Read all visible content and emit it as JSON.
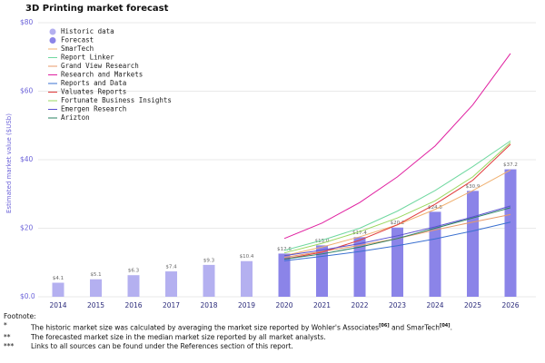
{
  "chart_data": {
    "type": "bar",
    "title": "3D Printing market forecast",
    "y_label": "Estimated market value ($USb)",
    "categories": [
      "2014",
      "2015",
      "2016",
      "2017",
      "2018",
      "2019",
      "2020",
      "2021",
      "2022",
      "2023",
      "2024",
      "2025",
      "2026"
    ],
    "ylim": [
      0,
      80
    ],
    "yticks": [
      {
        "value": 0,
        "label": "$0.0"
      },
      {
        "value": 20,
        "label": "$20"
      },
      {
        "value": 40,
        "label": "$40"
      },
      {
        "value": 60,
        "label": "$60"
      },
      {
        "value": 80,
        "label": "$80"
      }
    ],
    "grid": true,
    "legend": "upper left",
    "series": [
      {
        "name": "Historic data",
        "color": "#b4b0f0",
        "values": [
          4.1,
          5.1,
          6.3,
          7.4,
          9.3,
          10.4,
          null,
          null,
          null,
          null,
          null,
          null,
          null
        ],
        "value_labels": [
          "$4.1",
          "$5.1",
          "$6.3",
          "$7.4",
          "$9.3",
          "$10.4",
          null,
          null,
          null,
          null,
          null,
          null,
          null
        ]
      },
      {
        "name": "Forecast",
        "color": "#8b84e8",
        "values": [
          null,
          null,
          null,
          null,
          null,
          null,
          12.6,
          15.0,
          17.4,
          20.2,
          24.8,
          30.9,
          37.2
        ],
        "value_labels": [
          null,
          null,
          null,
          null,
          null,
          null,
          "$12.6",
          "$15.0",
          "$17.4",
          "$20.2",
          "$24.8",
          "$30.9",
          "$37.2"
        ]
      }
    ],
    "lines": [
      {
        "name": "SmarTech",
        "color": "#f0b070",
        "values": [
          null,
          null,
          null,
          null,
          null,
          null,
          12,
          14.5,
          17.5,
          21,
          25.5,
          31,
          37
        ]
      },
      {
        "name": "Report Linker",
        "color": "#70d8a0",
        "values": [
          null,
          null,
          null,
          null,
          null,
          null,
          13.5,
          16.5,
          20,
          25,
          31,
          38,
          45.5
        ]
      },
      {
        "name": "Grand View Research",
        "color": "#e89a6a",
        "values": [
          null,
          null,
          null,
          null,
          null,
          null,
          11.5,
          13.2,
          15,
          17,
          19.5,
          21.8,
          24
        ]
      },
      {
        "name": "Research and Markets",
        "color": "#e020a0",
        "values": [
          null,
          null,
          null,
          null,
          null,
          null,
          17,
          21.5,
          27.5,
          35,
          44,
          56,
          71
        ]
      },
      {
        "name": "Reports and Data",
        "color": "#3a70d0",
        "values": [
          null,
          null,
          null,
          null,
          null,
          null,
          10.5,
          11.8,
          13.2,
          14.9,
          16.9,
          19.2,
          21.8
        ]
      },
      {
        "name": "Valuates Reports",
        "color": "#e03a3a",
        "values": [
          null,
          null,
          null,
          null,
          null,
          null,
          11,
          13,
          16.5,
          21,
          27,
          34,
          44.5
        ]
      },
      {
        "name": "Fortunate Business Insights",
        "color": "#9ad860",
        "values": [
          null,
          null,
          null,
          null,
          null,
          null,
          12.8,
          15.6,
          19,
          23,
          28,
          35,
          45
        ]
      },
      {
        "name": "Emergen Research",
        "color": "#5a50d0",
        "values": [
          null,
          null,
          null,
          null,
          null,
          null,
          12,
          13.6,
          15.5,
          17.8,
          20.4,
          23.3,
          26.5
        ]
      },
      {
        "name": "Arizton",
        "color": "#2a8060",
        "values": [
          null,
          null,
          null,
          null,
          null,
          null,
          11,
          12.5,
          14.5,
          17,
          20,
          23,
          26
        ]
      }
    ]
  },
  "footnote": {
    "title": "Footnote:",
    "items": [
      {
        "marker": "*",
        "parts": [
          "The historic market size was calculated by averaging the market size reported by Wohler's Associates",
          "[06]",
          " and SmarTech",
          "[04]",
          "."
        ]
      },
      {
        "marker": "**",
        "parts": [
          "The forecasted market size in the median market size reported by all market analysts."
        ]
      },
      {
        "marker": "***",
        "parts": [
          "Links to all sources can be found under the References section of this report."
        ]
      }
    ]
  }
}
